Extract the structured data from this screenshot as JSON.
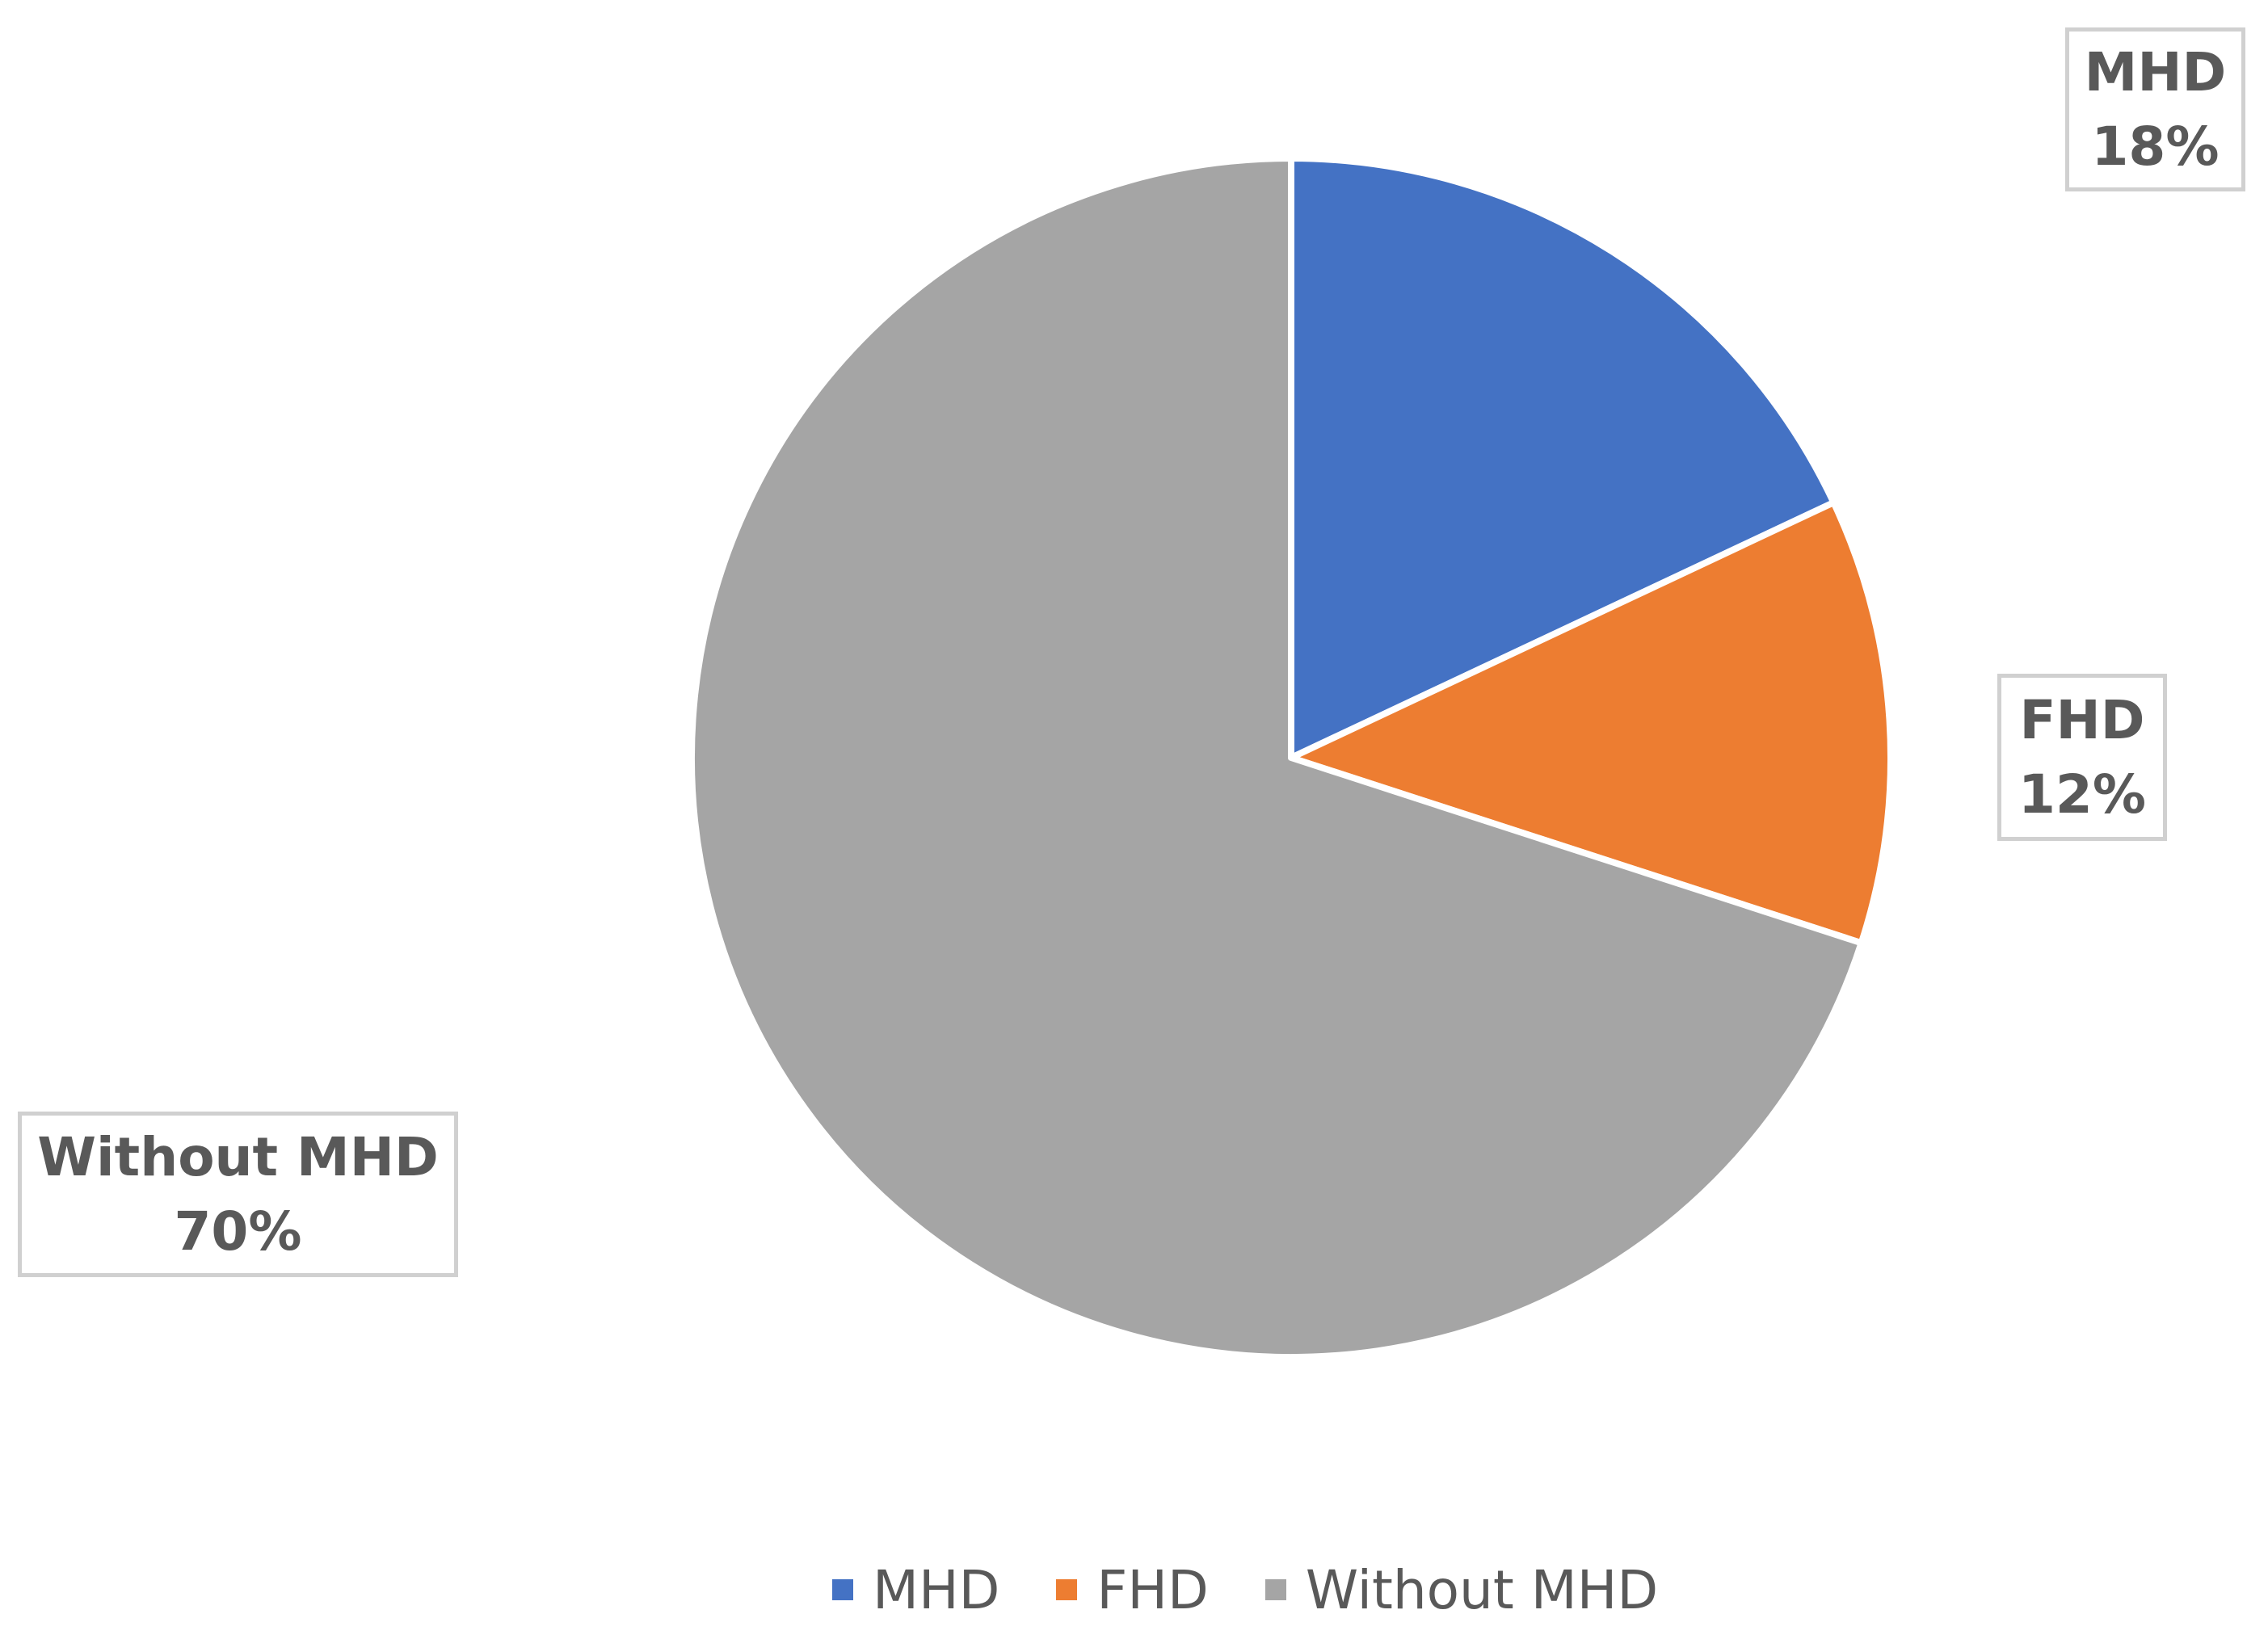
{
  "chart_data": {
    "type": "pie",
    "title": "",
    "categories": [
      "MHD",
      "FHD",
      "Without MHD"
    ],
    "values": [
      18,
      12,
      70
    ],
    "value_labels": [
      "18%",
      "12%",
      "70%"
    ],
    "colors": [
      "#4472C4",
      "#ED7D31",
      "#A5A5A5"
    ],
    "start_angle_deg": 0,
    "direction": "clockwise",
    "slice_border_color": "#ffffff",
    "data_labels": "category and percent, boxed, outside",
    "legend_position": "bottom"
  }
}
